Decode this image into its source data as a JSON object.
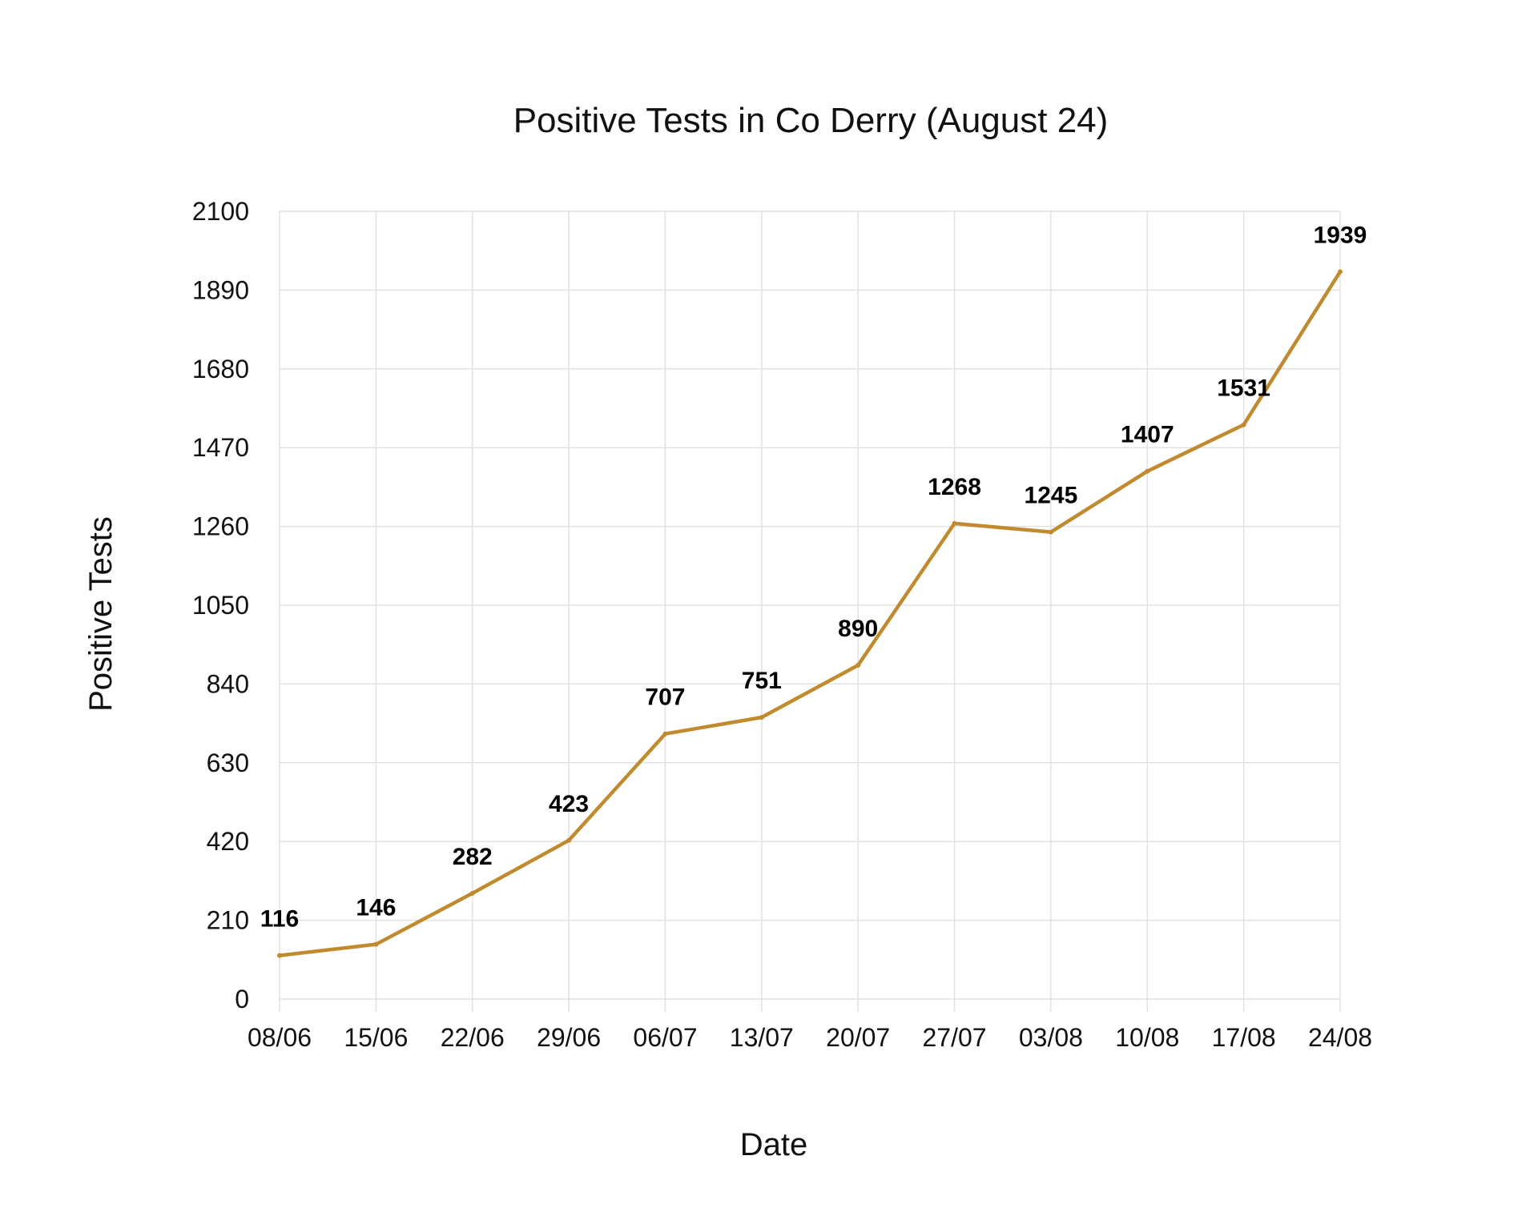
{
  "chart_data": {
    "type": "line",
    "title": "Positive Tests in Co Derry (August 24)",
    "xlabel": "Date",
    "ylabel": "Positive Tests",
    "categories": [
      "08/06",
      "15/06",
      "22/06",
      "29/06",
      "06/07",
      "13/07",
      "20/07",
      "27/07",
      "03/08",
      "10/08",
      "17/08",
      "24/08"
    ],
    "series": [
      {
        "name": "",
        "values": [
          116,
          146,
          282,
          423,
          707,
          751,
          890,
          1268,
          1245,
          1407,
          1531,
          1939
        ],
        "color": "#C08A2E"
      }
    ],
    "ylim": [
      0,
      2100
    ],
    "yticks": [
      0,
      210,
      420,
      630,
      840,
      1050,
      1260,
      1470,
      1680,
      1890,
      2100
    ],
    "grid": true,
    "data_labels": true
  }
}
